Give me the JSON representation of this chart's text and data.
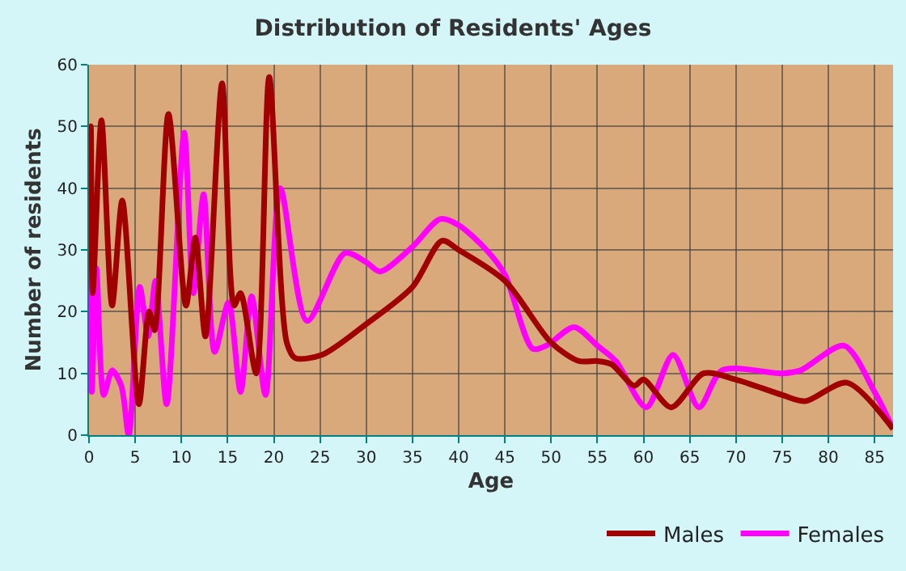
{
  "chart_data": {
    "type": "line",
    "title": "Distribution of Residents' Ages",
    "xlabel": "Age",
    "ylabel": "Number of residents",
    "xlim": [
      0,
      87
    ],
    "xticks": [
      0,
      5,
      10,
      15,
      20,
      25,
      30,
      35,
      40,
      45,
      50,
      55,
      60,
      65,
      70,
      75,
      80,
      85
    ],
    "ylim": [
      0,
      60
    ],
    "yticks": [
      0,
      10,
      20,
      30,
      40,
      50,
      60
    ],
    "grid": true,
    "legend": "bottom right",
    "marker": "none",
    "line_style": "solid",
    "series": [
      {
        "name": "Males",
        "color": "#a00000",
        "x": [
          0,
          0.2,
          0.4,
          1.35,
          2.5,
          3.6,
          5.4,
          6.5,
          7.1,
          8.6,
          10.5,
          11.5,
          12.6,
          14.4,
          15.7,
          16.4,
          18.1,
          19.5,
          21.4,
          22.3,
          25.2,
          30,
          35,
          38.2,
          40,
          45,
          50,
          53,
          55,
          56.5,
          59,
          60,
          63,
          66.5,
          70,
          75,
          77.5,
          82,
          87
        ],
        "values": [
          34,
          50,
          23,
          51,
          21,
          38,
          5,
          20,
          17,
          52,
          21,
          32,
          16,
          57,
          21,
          23,
          10,
          58,
          15,
          12.5,
          13,
          18,
          24,
          31.5,
          30,
          25,
          15,
          12,
          12,
          11.5,
          8,
          9,
          4.5,
          10,
          9,
          6.5,
          5.5,
          8.5,
          1
        ]
      },
      {
        "name": "Females",
        "color": "#ff00ff",
        "x": [
          0,
          0.3,
          0.8,
          1.6,
          2.5,
          3.5,
          4.3,
          5.5,
          6.4,
          7.2,
          8.4,
          10.3,
          11.3,
          12.4,
          13.6,
          15.1,
          16.4,
          17.6,
          19.1,
          20.7,
          23.6,
          27.7,
          30,
          31.5,
          35,
          38,
          40,
          43,
          45,
          48,
          49.5,
          52.5,
          55,
          57,
          60.3,
          63.2,
          66,
          68.5,
          75,
          77,
          81.7,
          85,
          87
        ],
        "values": [
          34,
          7,
          27,
          6.5,
          10.5,
          8,
          0,
          24,
          16,
          25,
          5,
          49,
          23,
          39,
          13.5,
          21.5,
          7,
          22.5,
          6.5,
          40,
          18.5,
          29.5,
          28,
          26.5,
          30.5,
          35,
          34,
          30,
          26,
          14,
          14.5,
          17.5,
          14.5,
          12,
          4.5,
          13,
          4.5,
          10.5,
          10,
          10.5,
          14.5,
          7,
          1
        ]
      }
    ]
  }
}
